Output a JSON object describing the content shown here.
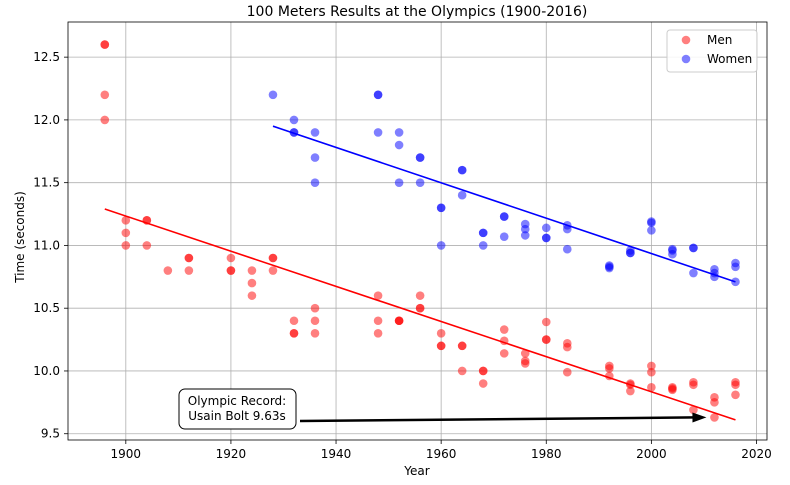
{
  "chart_data": {
    "type": "scatter",
    "title": "100 Meters Results at the Olympics (1900-2016)",
    "xlabel": "Year",
    "ylabel": "Time (seconds)",
    "xlim": [
      1889,
      2022
    ],
    "ylim": [
      9.45,
      12.78
    ],
    "xticks": [
      1900,
      1920,
      1940,
      1960,
      1980,
      2000,
      2020
    ],
    "yticks": [
      9.5,
      10.0,
      10.5,
      11.0,
      11.5,
      12.0,
      12.5
    ],
    "grid": true,
    "legend_position": "top-right",
    "series": [
      {
        "name": "Men",
        "color": "#ff0000",
        "points": [
          [
            1896,
            12.0
          ],
          [
            1896,
            12.2
          ],
          [
            1896,
            12.6
          ],
          [
            1896,
            12.6
          ],
          [
            1900,
            11.0
          ],
          [
            1900,
            11.1
          ],
          [
            1900,
            11.2
          ],
          [
            1904,
            11.0
          ],
          [
            1904,
            11.2
          ],
          [
            1904,
            11.2
          ],
          [
            1908,
            10.8
          ],
          [
            1912,
            10.8
          ],
          [
            1912,
            10.9
          ],
          [
            1912,
            10.9
          ],
          [
            1920,
            10.8
          ],
          [
            1920,
            10.8
          ],
          [
            1920,
            10.9
          ],
          [
            1924,
            10.6
          ],
          [
            1924,
            10.7
          ],
          [
            1924,
            10.8
          ],
          [
            1928,
            10.8
          ],
          [
            1928,
            10.9
          ],
          [
            1928,
            10.9
          ],
          [
            1932,
            10.3
          ],
          [
            1932,
            10.3
          ],
          [
            1932,
            10.4
          ],
          [
            1936,
            10.3
          ],
          [
            1936,
            10.4
          ],
          [
            1936,
            10.5
          ],
          [
            1948,
            10.3
          ],
          [
            1948,
            10.4
          ],
          [
            1948,
            10.6
          ],
          [
            1952,
            10.4
          ],
          [
            1952,
            10.4
          ],
          [
            1952,
            10.4
          ],
          [
            1956,
            10.5
          ],
          [
            1956,
            10.5
          ],
          [
            1956,
            10.6
          ],
          [
            1960,
            10.2
          ],
          [
            1960,
            10.2
          ],
          [
            1960,
            10.3
          ],
          [
            1964,
            10.0
          ],
          [
            1964,
            10.2
          ],
          [
            1964,
            10.2
          ],
          [
            1968,
            9.9
          ],
          [
            1968,
            10.0
          ],
          [
            1968,
            10.0
          ],
          [
            1972,
            10.14
          ],
          [
            1972,
            10.24
          ],
          [
            1972,
            10.33
          ],
          [
            1976,
            10.06
          ],
          [
            1976,
            10.08
          ],
          [
            1976,
            10.14
          ],
          [
            1980,
            10.25
          ],
          [
            1980,
            10.25
          ],
          [
            1980,
            10.39
          ],
          [
            1984,
            9.99
          ],
          [
            1984,
            10.19
          ],
          [
            1984,
            10.22
          ],
          [
            1992,
            9.96
          ],
          [
            1992,
            10.02
          ],
          [
            1992,
            10.04
          ],
          [
            1996,
            9.84
          ],
          [
            1996,
            9.89
          ],
          [
            1996,
            9.9
          ],
          [
            2000,
            9.87
          ],
          [
            2000,
            9.99
          ],
          [
            2000,
            10.04
          ],
          [
            2004,
            9.85
          ],
          [
            2004,
            9.86
          ],
          [
            2004,
            9.87
          ],
          [
            2008,
            9.69
          ],
          [
            2008,
            9.89
          ],
          [
            2008,
            9.91
          ],
          [
            2012,
            9.63
          ],
          [
            2012,
            9.75
          ],
          [
            2012,
            9.79
          ],
          [
            2016,
            9.81
          ],
          [
            2016,
            9.89
          ],
          [
            2016,
            9.91
          ]
        ],
        "trend": [
          [
            1896,
            11.29
          ],
          [
            2016,
            9.61
          ]
        ]
      },
      {
        "name": "Women",
        "color": "#0000ff",
        "points": [
          [
            1928,
            12.2
          ],
          [
            1932,
            11.9
          ],
          [
            1932,
            11.9
          ],
          [
            1932,
            12.0
          ],
          [
            1936,
            11.5
          ],
          [
            1936,
            11.7
          ],
          [
            1936,
            11.9
          ],
          [
            1948,
            11.9
          ],
          [
            1948,
            12.2
          ],
          [
            1948,
            12.2
          ],
          [
            1952,
            11.5
          ],
          [
            1952,
            11.8
          ],
          [
            1952,
            11.9
          ],
          [
            1956,
            11.5
          ],
          [
            1956,
            11.7
          ],
          [
            1956,
            11.7
          ],
          [
            1960,
            11.0
          ],
          [
            1960,
            11.3
          ],
          [
            1960,
            11.3
          ],
          [
            1964,
            11.4
          ],
          [
            1964,
            11.6
          ],
          [
            1964,
            11.6
          ],
          [
            1968,
            11.0
          ],
          [
            1968,
            11.1
          ],
          [
            1968,
            11.1
          ],
          [
            1972,
            11.07
          ],
          [
            1972,
            11.23
          ],
          [
            1972,
            11.23
          ],
          [
            1976,
            11.08
          ],
          [
            1976,
            11.13
          ],
          [
            1976,
            11.17
          ],
          [
            1980,
            11.06
          ],
          [
            1980,
            11.06
          ],
          [
            1980,
            11.14
          ],
          [
            1984,
            10.97
          ],
          [
            1984,
            11.13
          ],
          [
            1984,
            11.16
          ],
          [
            1992,
            10.82
          ],
          [
            1992,
            10.83
          ],
          [
            1992,
            10.84
          ],
          [
            1996,
            10.94
          ],
          [
            1996,
            10.94
          ],
          [
            1996,
            10.96
          ],
          [
            2000,
            11.12
          ],
          [
            2000,
            11.18
          ],
          [
            2000,
            11.19
          ],
          [
            2004,
            10.93
          ],
          [
            2004,
            10.96
          ],
          [
            2004,
            10.97
          ],
          [
            2008,
            10.78
          ],
          [
            2008,
            10.98
          ],
          [
            2008,
            10.98
          ],
          [
            2012,
            10.75
          ],
          [
            2012,
            10.78
          ],
          [
            2012,
            10.81
          ],
          [
            2016,
            10.71
          ],
          [
            2016,
            10.83
          ],
          [
            2016,
            10.86
          ]
        ],
        "trend": [
          [
            1928,
            11.95
          ],
          [
            2016,
            10.71
          ]
        ]
      }
    ],
    "annotation": {
      "line1": "Olympic Record:",
      "line2": "Usain Bolt 9.63s",
      "point": [
        2012,
        9.63
      ]
    }
  }
}
